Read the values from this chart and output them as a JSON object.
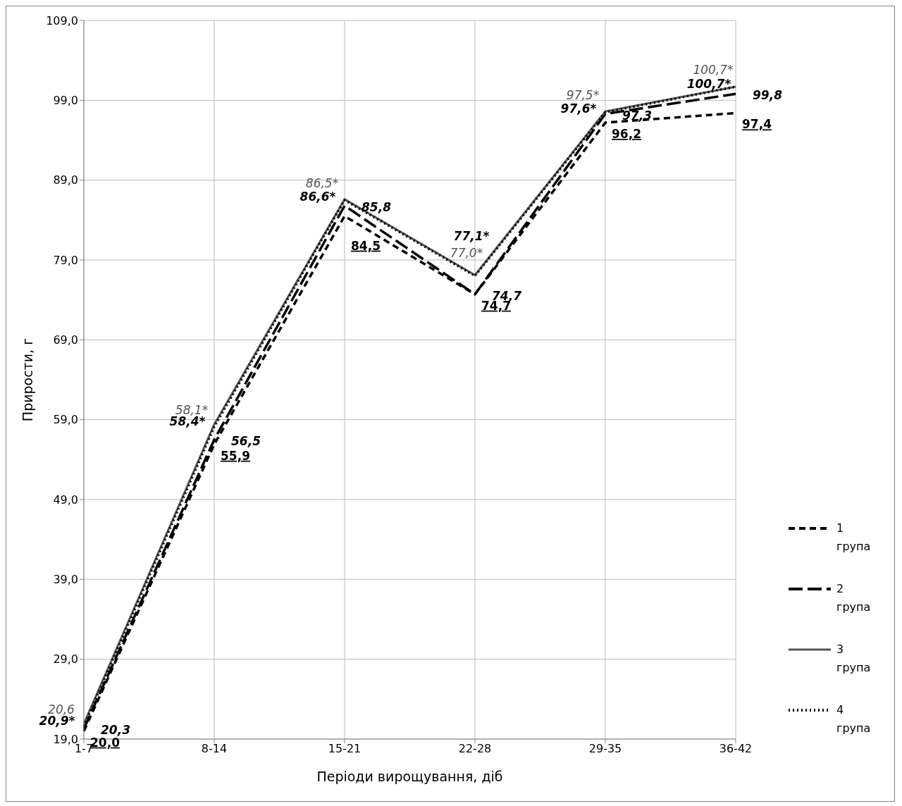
{
  "chart_data": {
    "type": "line",
    "xlabel": "Періоди вирощування, діб",
    "ylabel": "Прирости, г",
    "categories": [
      "1-7",
      "8-14",
      "15-21",
      "22-28",
      "29-35",
      "36-42"
    ],
    "ylim": [
      19,
      109
    ],
    "yticks": [
      {
        "value": 19,
        "label": "19,0"
      },
      {
        "value": 29,
        "label": "29,0"
      },
      {
        "value": 39,
        "label": "39,0"
      },
      {
        "value": 49,
        "label": "49,0"
      },
      {
        "value": 59,
        "label": "59,0"
      },
      {
        "value": 69,
        "label": "69,0"
      },
      {
        "value": 79,
        "label": "79,0"
      },
      {
        "value": 89,
        "label": "89,0"
      },
      {
        "value": 99,
        "label": "99,0"
      },
      {
        "value": 109,
        "label": "109,0"
      }
    ],
    "grid": true,
    "legend": "right",
    "series": [
      {
        "name": "1 група",
        "color": "#000000",
        "line_style": "dashed",
        "values": [
          20.0,
          55.9,
          84.5,
          74.7,
          96.2,
          97.4
        ],
        "value_labels": [
          "20,0",
          "55,9",
          "84,5",
          "74,7",
          "96,2",
          "97,4"
        ]
      },
      {
        "name": "2 група",
        "color": "#000000",
        "line_style": "dashed",
        "values": [
          20.3,
          56.5,
          85.8,
          74.7,
          97.3,
          99.8
        ],
        "value_labels": [
          "20,3",
          "56,5",
          "85,8",
          "74,7",
          "97,3",
          "99,8"
        ]
      },
      {
        "name": "3 група",
        "color": "#555555",
        "line_style": "solid",
        "values": [
          20.9,
          58.4,
          86.6,
          77.1,
          97.6,
          100.7
        ],
        "value_labels": [
          "20,9*",
          "58,4*",
          "86,6*",
          "77,1*",
          "97,6*",
          "100,7*"
        ]
      },
      {
        "name": "4 група",
        "color": "#000000",
        "line_style": "dotted",
        "values": [
          20.6,
          58.1,
          86.5,
          77.0,
          97.5,
          100.7
        ],
        "value_labels": [
          "20,6",
          "58,1*",
          "86,5*",
          "77,0*",
          "97,5*",
          "100,7*"
        ]
      }
    ]
  }
}
